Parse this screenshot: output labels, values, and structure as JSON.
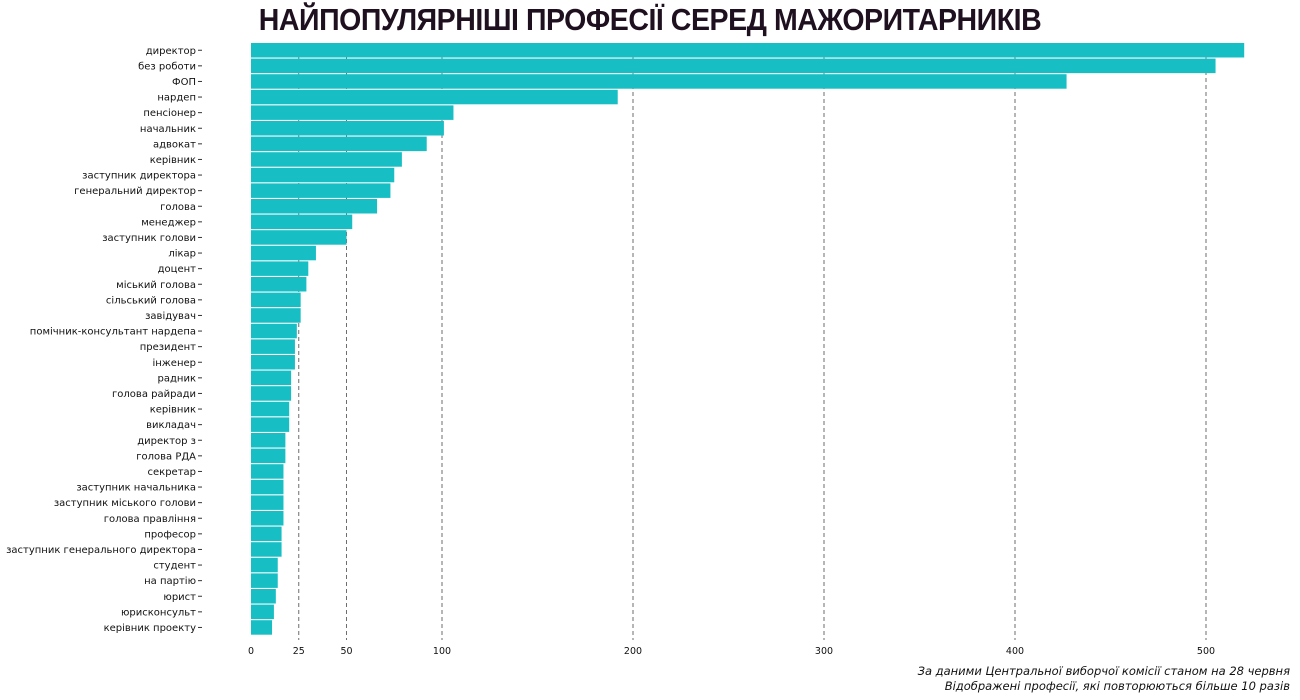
{
  "chart_data": {
    "type": "bar",
    "orientation": "horizontal",
    "title": "НАЙПОПУЛЯРНІШІ ПРОФЕСІЇ СЕРЕД МАЖОРИТАРНИКІВ",
    "xlabel": "",
    "ylabel": "",
    "xlim": [
      0,
      520
    ],
    "x_ticks": [
      0,
      25,
      50,
      100,
      200,
      300,
      400,
      500
    ],
    "grid": "vertical dashed",
    "bar_color": "#17bec4",
    "categories": [
      "директор",
      "без роботи",
      "ФОП",
      "нардеп",
      "пенсіонер",
      "начальник",
      "адвокат",
      "керівник",
      "заступник директора",
      "генеральний директор",
      "голова",
      "менеджер",
      "заступник голови",
      "лікар",
      "доцент",
      "міський голова",
      "сільський голова",
      "завідувач",
      "помічник-консультант нардепа",
      "президент",
      "інженер",
      "радник",
      "голова райради",
      "керівник ",
      "викладач",
      "директор з",
      "голова РДА",
      "секретар",
      "заступник начальника",
      "заступник міського голови",
      "голова правління",
      "професор",
      "заступник генерального директора",
      "студент",
      "на партію",
      "юрист",
      "юрисконсульт",
      "керівник проекту"
    ],
    "values": [
      520,
      505,
      427,
      192,
      106,
      101,
      92,
      79,
      75,
      73,
      66,
      53,
      50,
      34,
      30,
      29,
      26,
      26,
      24,
      23,
      23,
      21,
      21,
      20,
      20,
      18,
      18,
      17,
      17,
      17,
      17,
      16,
      16,
      14,
      14,
      13,
      12,
      11
    ]
  },
  "notes": [
    "За даними Центральної виборчої комісії станом на 28 червня",
    "Відображені професії, які повторюються більше 10 разів"
  ]
}
